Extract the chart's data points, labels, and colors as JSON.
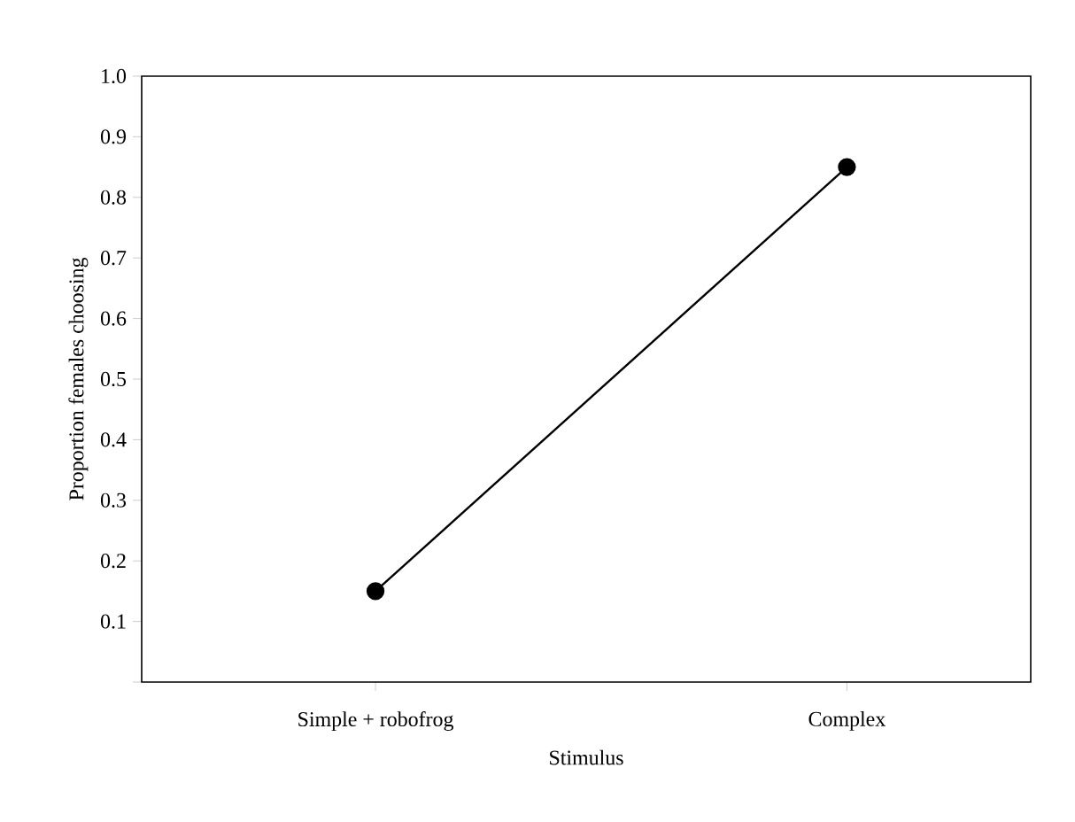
{
  "chart_data": {
    "type": "line",
    "xlabel": "Stimulus",
    "ylabel": "Proportion females choosing",
    "categories": [
      "Simple + robofrog",
      "Complex"
    ],
    "series": [
      {
        "color": "#000000",
        "values": [
          0.15,
          0.85
        ]
      }
    ],
    "ylim": [
      0.0,
      1.0
    ],
    "yticks": [
      {
        "value": 0.0,
        "label": null
      },
      0.1,
      0.2,
      0.3,
      0.4,
      0.5,
      0.6,
      0.7,
      0.8,
      0.9,
      {
        "value": 1.0,
        "label": "1.0"
      }
    ],
    "marker": "circle",
    "line_style": "solid",
    "grid": false
  }
}
